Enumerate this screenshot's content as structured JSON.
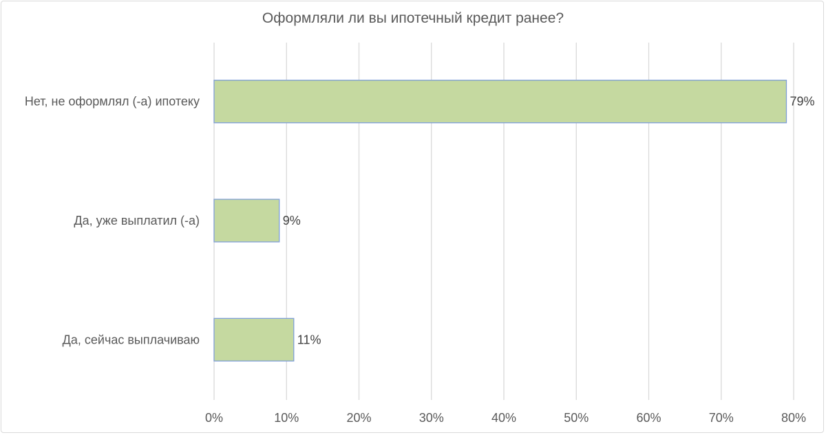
{
  "chart_data": {
    "type": "bar",
    "orientation": "horizontal",
    "title": "Оформляли ли вы ипотечный кредит ранее?",
    "categories": [
      "Нет, не оформлял (-а) ипотеку",
      "Да, уже выплатил (-а)",
      "Да, сейчас выплачиваю"
    ],
    "values": [
      79,
      9,
      11
    ],
    "value_labels": [
      "79%",
      "9%",
      "11%"
    ],
    "xlim": [
      0,
      80
    ],
    "x_ticks": [
      0,
      10,
      20,
      30,
      40,
      50,
      60,
      70,
      80
    ],
    "x_tick_labels": [
      "0%",
      "10%",
      "20%",
      "30%",
      "40%",
      "50%",
      "60%",
      "70%",
      "80%"
    ],
    "xlabel": "",
    "ylabel": "",
    "grid": true,
    "legend": "none",
    "colors": {
      "bar_fill": "#c5d9a0",
      "bar_stroke": "#7f9fd8",
      "grid": "#d9d9d9",
      "text": "#595959"
    }
  }
}
